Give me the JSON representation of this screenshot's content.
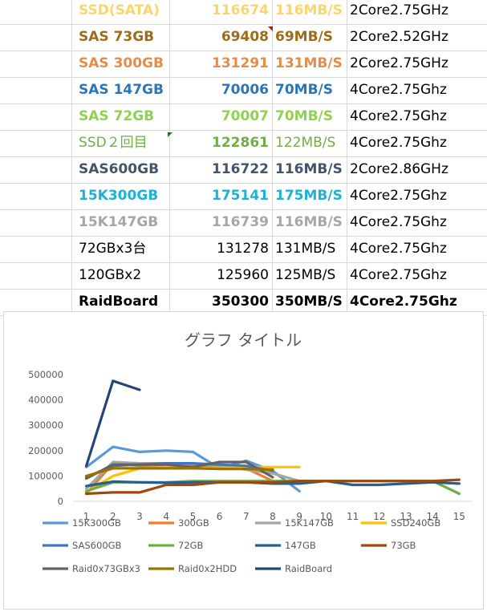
{
  "table": {
    "rows": [
      {
        "name": "SSD(SATA)",
        "value": "116674",
        "speed": "116MB/S",
        "cpu": "2Core2.75GHz",
        "color": "#f9d66c",
        "bold": true
      },
      {
        "name": "SAS 73GB",
        "value": "69408",
        "speed": "69MB/S",
        "cpu": "2Core2.52GHz",
        "color": "#9c6d18",
        "bold": true
      },
      {
        "name": "SAS 300GB",
        "value": "131291",
        "speed": "131MB/S",
        "cpu": "2Core2.75GHz",
        "color": "#e38d4c",
        "bold": true
      },
      {
        "name": "SAS 147GB",
        "value": "70006",
        "speed": "70MB/S",
        "cpu": "4Core2.75Ghz",
        "color": "#2e75b6",
        "bold": true
      },
      {
        "name": "SAS 72GB",
        "value": "70007",
        "speed": "70MB/S",
        "cpu": "4Core2.75Ghz",
        "color": "#92d050",
        "bold": true
      },
      {
        "name": "SSD２回目",
        "value": "122861",
        "speed": "122MB/S",
        "cpu": "4Core2.75Ghz",
        "color": "#70ad47",
        "bold": false,
        "valueBold": true
      },
      {
        "name": "SAS600GB",
        "value": "116722",
        "speed": "116MB/S",
        "cpu": "2Core2.86GHz",
        "color": "#44546a",
        "bold": true
      },
      {
        "name": "15K300GB",
        "value": "175141",
        "speed": "175MB/S",
        "cpu": "4Core2.75Ghz",
        "color": "#1fb0d6",
        "bold": true
      },
      {
        "name": "15K147GB",
        "value": "116739",
        "speed": "116MB/S",
        "cpu": "4Core2.75Ghz",
        "color": "#a6a6a6",
        "bold": true
      },
      {
        "name": "72GBx3台",
        "value": "131278",
        "speed": "131MB/S",
        "cpu": "4Core2.75Ghz",
        "color": "#000000",
        "bold": false
      },
      {
        "name": "120GBx2",
        "value": "125960",
        "speed": "125MB/S",
        "cpu": "4Core2.75Ghz",
        "color": "#000000",
        "bold": false
      },
      {
        "name": "RaidBoard",
        "value": "350300",
        "speed": "350MB/S",
        "cpu": "4Core2.75Ghz",
        "color": "#000000",
        "bold": true,
        "allBold": true
      }
    ]
  },
  "chart_data": {
    "type": "line",
    "title": "グラフ タイトル",
    "x": [
      1,
      2,
      3,
      4,
      5,
      6,
      7,
      8,
      9,
      10,
      11,
      12,
      13,
      14,
      15
    ],
    "x_ticks": [
      "1",
      "2",
      "3",
      "4",
      "5",
      "6",
      "7",
      "8",
      "9",
      "10",
      "11",
      "12",
      "13",
      "14",
      "15"
    ],
    "y_ticks": [
      "0",
      "100000",
      "200000",
      "300000",
      "400000",
      "500000"
    ],
    "ylim": [
      0,
      500000
    ],
    "grid": false,
    "legend_position": "bottom",
    "series": [
      {
        "name": "15K300GB",
        "color": "#5b9bd5",
        "values": [
          135000,
          215000,
          195000,
          200000,
          195000,
          130000,
          160000,
          120000,
          40000,
          null,
          null,
          null,
          null,
          null,
          null
        ]
      },
      {
        "name": "300GB",
        "color": "#ed7d31",
        "values": [
          30000,
          150000,
          140000,
          135000,
          140000,
          130000,
          130000,
          80000,
          null,
          null,
          null,
          null,
          null,
          null,
          null
        ]
      },
      {
        "name": "15K147GB",
        "color": "#a5a5a5",
        "values": [
          50000,
          155000,
          150000,
          150000,
          148000,
          140000,
          125000,
          110000,
          80000,
          null,
          null,
          null,
          null,
          null,
          null
        ]
      },
      {
        "name": "SSD240GB",
        "color": "#ffc000",
        "values": [
          35000,
          100000,
          130000,
          135000,
          132000,
          130000,
          135000,
          135000,
          135000,
          null,
          null,
          null,
          null,
          null,
          null
        ]
      },
      {
        "name": "SAS600GB",
        "color": "#4472c4",
        "values": [
          95000,
          140000,
          145000,
          150000,
          150000,
          145000,
          140000,
          120000,
          null,
          null,
          null,
          null,
          null,
          null,
          null
        ]
      },
      {
        "name": "72GB",
        "color": "#70ad47",
        "values": [
          40000,
          75000,
          75000,
          75000,
          80000,
          80000,
          80000,
          80000,
          80000,
          80000,
          80000,
          80000,
          80000,
          80000,
          30000
        ]
      },
      {
        "name": "147GB",
        "color": "#255e91",
        "values": [
          60000,
          78000,
          75000,
          73000,
          75000,
          75000,
          75000,
          70000,
          70000,
          80000,
          65000,
          65000,
          70000,
          75000,
          70000
        ]
      },
      {
        "name": "73GB",
        "color": "#9e480e",
        "values": [
          30000,
          35000,
          35000,
          65000,
          65000,
          75000,
          75000,
          75000,
          80000,
          80000,
          80000,
          80000,
          80000,
          80000,
          85000
        ]
      },
      {
        "name": "Raid0x73GBx3",
        "color": "#636363",
        "values": [
          90000,
          145000,
          145000,
          145000,
          135000,
          155000,
          155000,
          95000,
          null,
          null,
          null,
          null,
          null,
          null,
          null
        ]
      },
      {
        "name": "Raid0x2HDD",
        "color": "#997300",
        "values": [
          100000,
          130000,
          130000,
          130000,
          130000,
          128000,
          128000,
          125000,
          null,
          null,
          null,
          null,
          null,
          null,
          null
        ]
      },
      {
        "name": "RaidBoard",
        "color": "#264478",
        "values": [
          140000,
          475000,
          440000,
          null,
          null,
          null,
          null,
          null,
          null,
          null,
          null,
          null,
          null,
          null,
          null
        ]
      }
    ]
  }
}
